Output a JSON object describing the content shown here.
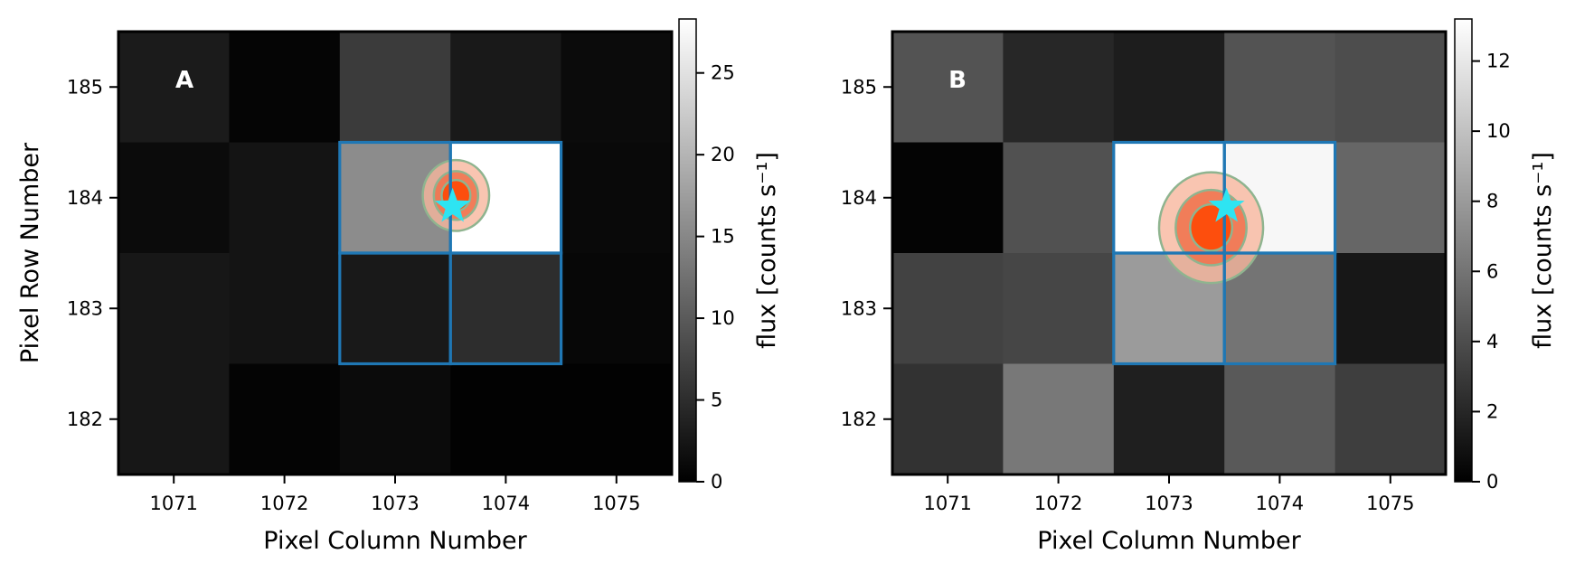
{
  "chart_data": [
    {
      "type": "heatmap",
      "panel_label": "A",
      "xlabel": "Pixel Column Number",
      "ylabel": "Pixel Row Number",
      "x_ticks": [
        "1071",
        "1072",
        "1073",
        "1074",
        "1075"
      ],
      "y_ticks": [
        "182",
        "183",
        "184",
        "185"
      ],
      "columns": [
        1071,
        1072,
        1073,
        1074,
        1075
      ],
      "rows": [
        185,
        184,
        183,
        182
      ],
      "xlim": [
        1070.5,
        1075.5
      ],
      "ylim": [
        181.5,
        185.5
      ],
      "values": [
        [
          3.0,
          0.5,
          6.5,
          2.8,
          1.2
        ],
        [
          1.2,
          2.2,
          15.5,
          28.3,
          1.0
        ],
        [
          2.5,
          2.2,
          2.8,
          5.0,
          0.8
        ],
        [
          2.5,
          0.4,
          1.2,
          0.2,
          0.2
        ]
      ],
      "colormap": "gray",
      "colorbar": {
        "label": "flux [counts s⁻¹]",
        "min": 0,
        "max": 28.3,
        "ticks": [
          "0",
          "5",
          "10",
          "15",
          "20",
          "25"
        ],
        "tick_values": [
          0,
          5,
          10,
          15,
          20,
          25
        ]
      },
      "aperture": {
        "x0": 1072.5,
        "x1": 1074.5,
        "y0": 182.5,
        "y1": 184.5,
        "color": "#1f77b4"
      },
      "contours": {
        "center": [
          1073.55,
          184.02
        ],
        "semi_axes": [
          [
            0.3,
            0.32
          ],
          [
            0.2,
            0.22
          ],
          [
            0.13,
            0.14
          ]
        ],
        "fill_colors": [
          "#f7b79e",
          "#f0704a",
          "#ff4500"
        ],
        "edge_color": "#8fb48f"
      },
      "star": {
        "x": 1073.52,
        "y": 183.92,
        "color": "#2ee4f2"
      }
    },
    {
      "type": "heatmap",
      "panel_label": "B",
      "xlabel": "Pixel Column Number",
      "ylabel": "",
      "x_ticks": [
        "1071",
        "1072",
        "1073",
        "1074",
        "1075"
      ],
      "y_ticks": [
        "182",
        "183",
        "184",
        "185"
      ],
      "columns": [
        1071,
        1072,
        1073,
        1074,
        1075
      ],
      "rows": [
        185,
        184,
        183,
        182
      ],
      "xlim": [
        1070.5,
        1075.5
      ],
      "ylim": [
        181.5,
        185.5
      ],
      "values": [
        [
          4.3,
          2.0,
          1.5,
          4.3,
          4.0
        ],
        [
          0.2,
          4.2,
          13.2,
          12.8,
          5.3
        ],
        [
          3.4,
          3.6,
          8.0,
          6.0,
          1.2
        ],
        [
          2.6,
          6.2,
          1.6,
          4.6,
          3.2
        ]
      ],
      "colormap": "gray",
      "colorbar": {
        "label": "flux [counts s⁻¹]",
        "min": 0,
        "max": 13.2,
        "ticks": [
          "0",
          "2",
          "4",
          "6",
          "8",
          "10",
          "12"
        ],
        "tick_values": [
          0,
          2,
          4,
          6,
          8,
          10,
          12
        ]
      },
      "aperture": {
        "x0": 1072.5,
        "x1": 1074.5,
        "y0": 182.5,
        "y1": 184.5,
        "color": "#1f77b4"
      },
      "contours": {
        "center": [
          1073.38,
          183.73
        ],
        "semi_axes": [
          [
            0.47,
            0.5
          ],
          [
            0.32,
            0.34
          ],
          [
            0.19,
            0.21
          ]
        ],
        "fill_colors": [
          "#f7b79e",
          "#f0704a",
          "#ff4500"
        ],
        "edge_color": "#8fb48f"
      },
      "star": {
        "x": 1073.52,
        "y": 183.92,
        "color": "#2ee4f2"
      }
    }
  ]
}
